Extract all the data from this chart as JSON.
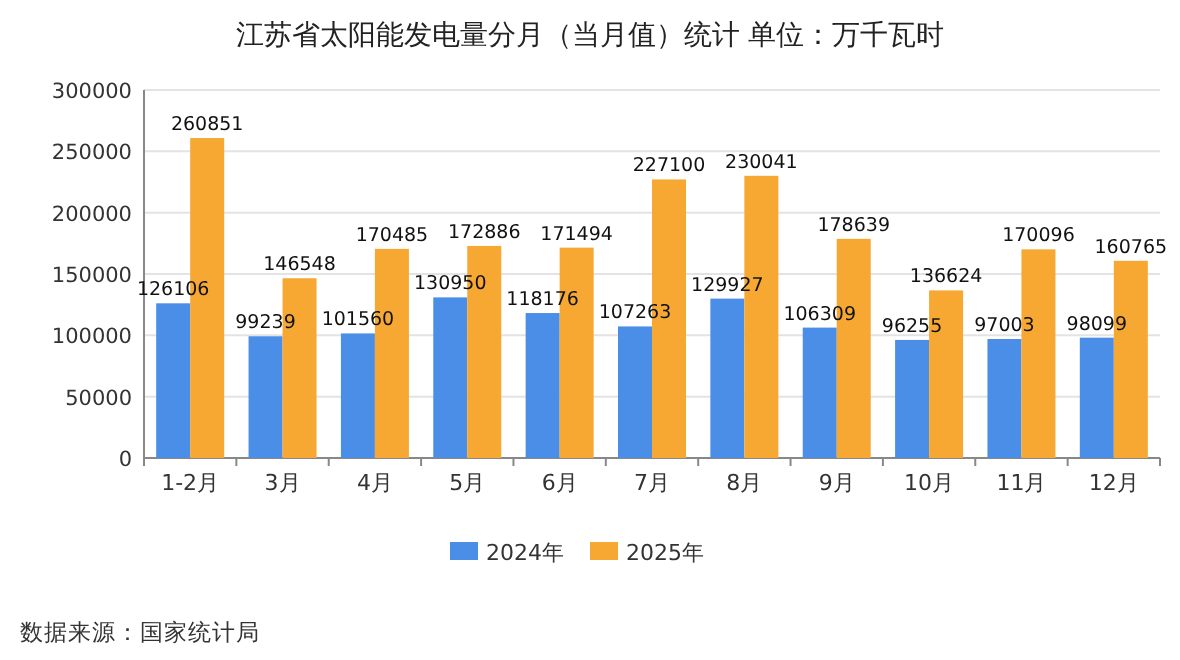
{
  "chart_data": {
    "type": "bar",
    "title": "江苏省太阳能发电量分月（当月值）统计  单位：万千瓦时",
    "categories": [
      "1-2月",
      "3月",
      "4月",
      "5月",
      "6月",
      "7月",
      "8月",
      "9月",
      "10月",
      "11月",
      "12月"
    ],
    "series": [
      {
        "name": "2024年",
        "color": "#4a8ee8",
        "values": [
          126106,
          99239,
          101560,
          130950,
          118176,
          107263,
          129927,
          106309,
          96255,
          97003,
          98099
        ]
      },
      {
        "name": "2025年",
        "color": "#f6a832",
        "values": [
          260851,
          146548,
          170485,
          172886,
          171494,
          227100,
          230041,
          178639,
          136624,
          170096,
          160765
        ]
      }
    ],
    "ylim": [
      0,
      300000
    ],
    "yticks": [
      0,
      50000,
      100000,
      150000,
      200000,
      250000,
      300000
    ],
    "grid": "y",
    "legend": "bottom",
    "data_labels": true,
    "annotations": [
      "数据来源：国家统计局"
    ]
  }
}
